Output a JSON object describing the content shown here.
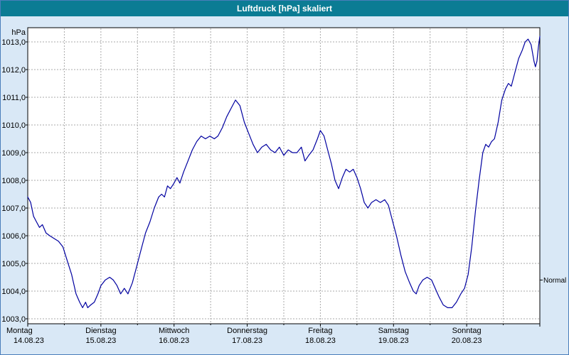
{
  "window": {
    "title": "Luftdruck [hPa] skaliert"
  },
  "colors": {
    "titlebar": "#0b7c94",
    "window_background": "#d9e8f6",
    "plot_background": "#ffffff",
    "grid": "#aaaaaa",
    "axis": "#000000",
    "line": "#0000a0",
    "frame_border": "#4a7ebb"
  },
  "chart_data": {
    "type": "line",
    "title": "Luftdruck [hPa] skaliert",
    "unit_label": "hPa",
    "grid": true,
    "legend_position": "none",
    "y_axis": {
      "min": 1003,
      "max": 1013,
      "step": 1,
      "tick_labels": [
        "1003,0",
        "1004,0",
        "1005,0",
        "1006,0",
        "1007,0",
        "1008,0",
        "1009,0",
        "1010,0",
        "1011,0",
        "1012,0",
        "1013,0"
      ]
    },
    "x_axis": {
      "unit": "day",
      "range_days": 7,
      "days": [
        {
          "name": "Montag",
          "date": "14.08.23"
        },
        {
          "name": "Dienstag",
          "date": "15.08.23"
        },
        {
          "name": "Mittwoch",
          "date": "16.08.23"
        },
        {
          "name": "Donnerstag",
          "date": "17.08.23"
        },
        {
          "name": "Freitag",
          "date": "18.08.23"
        },
        {
          "name": "Samstag",
          "date": "19.08.23"
        },
        {
          "name": "Sonntag",
          "date": "20.08.23"
        }
      ]
    },
    "right_label": {
      "text": "Normal",
      "value": 1004.4
    },
    "series": [
      {
        "name": "Luftdruck",
        "color": "#0000a0",
        "points": [
          [
            0.0,
            1007.4
          ],
          [
            0.04,
            1007.2
          ],
          [
            0.08,
            1006.7
          ],
          [
            0.12,
            1006.5
          ],
          [
            0.16,
            1006.3
          ],
          [
            0.2,
            1006.4
          ],
          [
            0.25,
            1006.1
          ],
          [
            0.3,
            1006.0
          ],
          [
            0.36,
            1005.9
          ],
          [
            0.42,
            1005.8
          ],
          [
            0.48,
            1005.6
          ],
          [
            0.54,
            1005.1
          ],
          [
            0.6,
            1004.6
          ],
          [
            0.66,
            1003.9
          ],
          [
            0.71,
            1003.6
          ],
          [
            0.75,
            1003.4
          ],
          [
            0.79,
            1003.6
          ],
          [
            0.82,
            1003.4
          ],
          [
            0.86,
            1003.5
          ],
          [
            0.91,
            1003.6
          ],
          [
            0.96,
            1003.9
          ],
          [
            1.0,
            1004.2
          ],
          [
            1.06,
            1004.4
          ],
          [
            1.12,
            1004.5
          ],
          [
            1.17,
            1004.4
          ],
          [
            1.22,
            1004.2
          ],
          [
            1.27,
            1003.9
          ],
          [
            1.32,
            1004.1
          ],
          [
            1.37,
            1003.9
          ],
          [
            1.43,
            1004.3
          ],
          [
            1.49,
            1004.9
          ],
          [
            1.55,
            1005.5
          ],
          [
            1.61,
            1006.1
          ],
          [
            1.67,
            1006.5
          ],
          [
            1.73,
            1007.0
          ],
          [
            1.79,
            1007.4
          ],
          [
            1.83,
            1007.5
          ],
          [
            1.87,
            1007.4
          ],
          [
            1.91,
            1007.8
          ],
          [
            1.95,
            1007.7
          ],
          [
            2.0,
            1007.9
          ],
          [
            2.04,
            1008.1
          ],
          [
            2.08,
            1007.9
          ],
          [
            2.13,
            1008.3
          ],
          [
            2.19,
            1008.7
          ],
          [
            2.25,
            1009.1
          ],
          [
            2.31,
            1009.4
          ],
          [
            2.37,
            1009.6
          ],
          [
            2.43,
            1009.5
          ],
          [
            2.49,
            1009.6
          ],
          [
            2.55,
            1009.5
          ],
          [
            2.6,
            1009.6
          ],
          [
            2.66,
            1009.9
          ],
          [
            2.72,
            1010.3
          ],
          [
            2.78,
            1010.6
          ],
          [
            2.84,
            1010.9
          ],
          [
            2.9,
            1010.7
          ],
          [
            2.96,
            1010.1
          ],
          [
            3.02,
            1009.7
          ],
          [
            3.08,
            1009.3
          ],
          [
            3.14,
            1009.0
          ],
          [
            3.2,
            1009.2
          ],
          [
            3.26,
            1009.3
          ],
          [
            3.32,
            1009.1
          ],
          [
            3.38,
            1009.0
          ],
          [
            3.44,
            1009.2
          ],
          [
            3.5,
            1008.9
          ],
          [
            3.56,
            1009.1
          ],
          [
            3.62,
            1009.0
          ],
          [
            3.68,
            1009.0
          ],
          [
            3.74,
            1009.2
          ],
          [
            3.79,
            1008.7
          ],
          [
            3.84,
            1008.9
          ],
          [
            3.9,
            1009.1
          ],
          [
            3.96,
            1009.5
          ],
          [
            4.0,
            1009.8
          ],
          [
            4.05,
            1009.6
          ],
          [
            4.1,
            1009.1
          ],
          [
            4.15,
            1008.6
          ],
          [
            4.2,
            1008.0
          ],
          [
            4.25,
            1007.7
          ],
          [
            4.3,
            1008.1
          ],
          [
            4.35,
            1008.4
          ],
          [
            4.4,
            1008.3
          ],
          [
            4.45,
            1008.4
          ],
          [
            4.5,
            1008.1
          ],
          [
            4.55,
            1007.7
          ],
          [
            4.6,
            1007.2
          ],
          [
            4.65,
            1007.0
          ],
          [
            4.7,
            1007.2
          ],
          [
            4.76,
            1007.3
          ],
          [
            4.82,
            1007.2
          ],
          [
            4.88,
            1007.3
          ],
          [
            4.93,
            1007.1
          ],
          [
            4.98,
            1006.6
          ],
          [
            5.04,
            1006.0
          ],
          [
            5.1,
            1005.3
          ],
          [
            5.16,
            1004.7
          ],
          [
            5.22,
            1004.3
          ],
          [
            5.27,
            1004.0
          ],
          [
            5.31,
            1003.9
          ],
          [
            5.35,
            1004.2
          ],
          [
            5.4,
            1004.4
          ],
          [
            5.46,
            1004.5
          ],
          [
            5.52,
            1004.4
          ],
          [
            5.57,
            1004.1
          ],
          [
            5.62,
            1003.8
          ],
          [
            5.68,
            1003.5
          ],
          [
            5.74,
            1003.4
          ],
          [
            5.8,
            1003.4
          ],
          [
            5.86,
            1003.6
          ],
          [
            5.92,
            1003.9
          ],
          [
            5.97,
            1004.1
          ],
          [
            6.02,
            1004.6
          ],
          [
            6.07,
            1005.6
          ],
          [
            6.12,
            1006.9
          ],
          [
            6.17,
            1008.0
          ],
          [
            6.22,
            1009.0
          ],
          [
            6.26,
            1009.3
          ],
          [
            6.3,
            1009.2
          ],
          [
            6.34,
            1009.4
          ],
          [
            6.38,
            1009.5
          ],
          [
            6.43,
            1010.1
          ],
          [
            6.48,
            1010.9
          ],
          [
            6.53,
            1011.3
          ],
          [
            6.57,
            1011.5
          ],
          [
            6.61,
            1011.4
          ],
          [
            6.66,
            1011.9
          ],
          [
            6.71,
            1012.4
          ],
          [
            6.76,
            1012.7
          ],
          [
            6.8,
            1013.0
          ],
          [
            6.84,
            1013.1
          ],
          [
            6.88,
            1012.9
          ],
          [
            6.92,
            1012.3
          ],
          [
            6.94,
            1012.1
          ],
          [
            6.96,
            1012.3
          ],
          [
            6.98,
            1012.8
          ],
          [
            7.0,
            1013.2
          ]
        ]
      }
    ]
  }
}
